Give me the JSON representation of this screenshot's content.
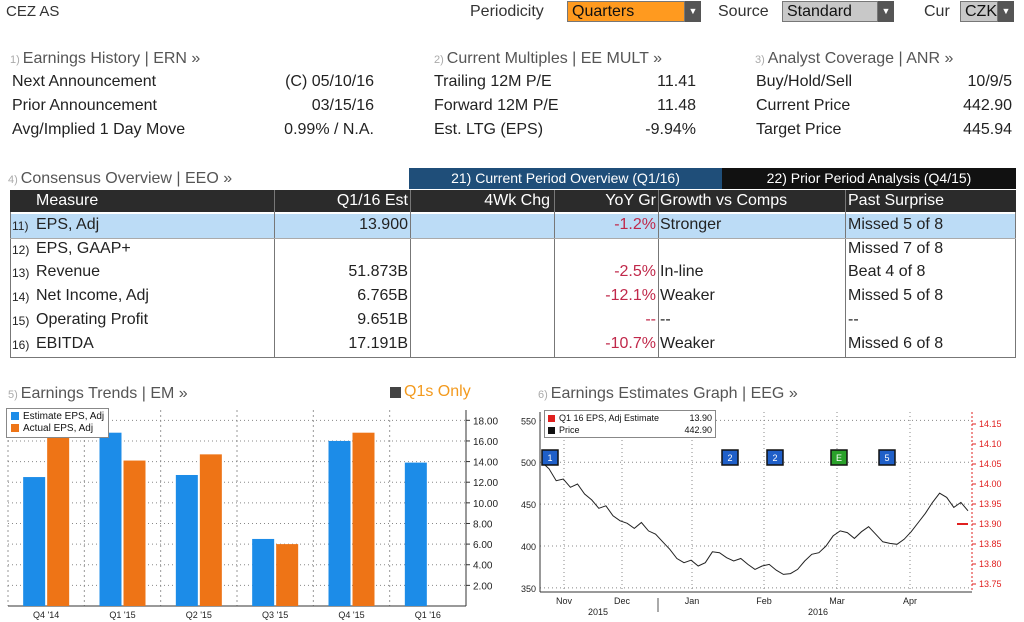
{
  "header": {
    "ticker": "CEZ AS",
    "periodicity_label": "Periodicity",
    "periodicity_value": "Quarters",
    "source_label": "Source",
    "source_value": "Standard",
    "cur_label": "Cur",
    "cur_value": "CZK"
  },
  "earnings_history": {
    "num": "1)",
    "title": "Earnings History | ERN »",
    "rows": [
      {
        "label": "Next Announcement",
        "value": "(C)  05/10/16"
      },
      {
        "label": "Prior Announcement",
        "value": "03/15/16"
      },
      {
        "label": "Avg/Implied 1 Day Move",
        "value": "0.99% / N.A."
      }
    ]
  },
  "current_multiples": {
    "num": "2)",
    "title": "Current Multiples | EE MULT »",
    "rows": [
      {
        "label": "Trailing 12M P/E",
        "value": "11.41"
      },
      {
        "label": "Forward 12M P/E",
        "value": "11.48"
      },
      {
        "label": "Est. LTG (EPS)",
        "value": "-9.94%"
      }
    ]
  },
  "analyst_coverage": {
    "num": "3)",
    "title": "Analyst Coverage | ANR »",
    "rows": [
      {
        "label": "Buy/Hold/Sell",
        "value": "10/9/5"
      },
      {
        "label": "Current Price",
        "value": "442.90"
      },
      {
        "label": "Target Price",
        "value": "445.94"
      }
    ]
  },
  "consensus": {
    "num": "4)",
    "title": "Consensus Overview | EEO »",
    "tab_current": "21) Current Period Overview (Q1/16)",
    "tab_prior": "22) Prior Period Analysis (Q4/15)",
    "columns": [
      "Measure",
      "Q1/16 Est",
      "4Wk Chg",
      "YoY Gr",
      "Growth vs Comps",
      "Past Surprise"
    ],
    "rows": [
      {
        "num": "11)",
        "measure": "EPS, Adj",
        "est": "13.900",
        "chg": "",
        "yoy": "-1.2%",
        "growth": "Stronger",
        "surprise": "Missed 5 of 8"
      },
      {
        "num": "12)",
        "measure": "EPS, GAAP+",
        "est": "",
        "chg": "",
        "yoy": "",
        "growth": "",
        "surprise": "Missed 7 of 8"
      },
      {
        "num": "13)",
        "measure": "Revenue",
        "est": "51.873B",
        "chg": "",
        "yoy": "-2.5%",
        "growth": "In-line",
        "surprise": "Beat 4 of 8"
      },
      {
        "num": "14)",
        "measure": "Net Income, Adj",
        "est": "6.765B",
        "chg": "",
        "yoy": "-12.1%",
        "growth": "Weaker",
        "surprise": "Missed 5 of 8"
      },
      {
        "num": "15)",
        "measure": "Operating Profit",
        "est": "9.651B",
        "chg": "",
        "yoy": "--",
        "growth": "--",
        "surprise": "--"
      },
      {
        "num": "16)",
        "measure": "EBITDA",
        "est": "17.191B",
        "chg": "",
        "yoy": "-10.7%",
        "growth": "Weaker",
        "surprise": "Missed 6 of 8"
      }
    ]
  },
  "earnings_trends": {
    "num": "5)",
    "title": "Earnings Trends | EM »",
    "toggle_label": "Q1s Only",
    "legend": [
      "Estimate EPS, Adj",
      "Actual EPS, Adj"
    ],
    "colors": {
      "estimate": "#1c8ce8",
      "actual": "#ee7416"
    }
  },
  "estimates_graph": {
    "num": "6)",
    "title": "Earnings Estimates Graph | EEG »",
    "legend": [
      {
        "label": "Q1 16 EPS, Adj Estimate",
        "value": "13.90",
        "color": "#e0201f"
      },
      {
        "label": "Price",
        "value": "442.90",
        "color": "#111111"
      }
    ],
    "markers": [
      "1",
      "2",
      "2",
      "E",
      "5"
    ]
  },
  "chart_data": [
    {
      "type": "bar",
      "categories": [
        "Q4 '14",
        "Q1 '15",
        "Q2 '15",
        "Q3 '15",
        "Q4 '15",
        "Q1 '16"
      ],
      "series": [
        {
          "name": "Estimate EPS, Adj",
          "values": [
            12.5,
            16.8,
            12.7,
            6.5,
            16.0,
            13.9
          ]
        },
        {
          "name": "Actual EPS, Adj",
          "values": [
            16.4,
            14.1,
            14.7,
            6.0,
            16.8,
            null
          ]
        }
      ],
      "yticks": [
        "2.00",
        "4.00",
        "6.00",
        "8.00",
        "10.00",
        "12.00",
        "14.00",
        "16.00",
        "18.00"
      ],
      "ylim": [
        0,
        19
      ]
    },
    {
      "type": "line",
      "series": [
        {
          "name": "Price",
          "values": [
            500,
            492,
            478,
            480,
            470,
            474,
            462,
            455,
            445,
            448,
            436,
            430,
            427,
            421,
            428,
            418,
            414,
            405,
            396,
            385,
            380,
            383,
            376,
            380,
            393,
            392,
            386,
            382,
            385,
            378,
            372,
            376,
            378,
            371,
            366,
            367,
            372,
            382,
            390,
            392,
            400,
            412,
            418,
            416,
            409,
            417,
            423,
            414,
            405,
            403,
            402,
            408,
            417,
            428,
            439,
            452,
            463,
            458,
            446,
            452,
            442
          ]
        },
        {
          "name": "Q1 16 EPS, Adj Estimate",
          "values": [
            13.9
          ]
        }
      ],
      "yticks_left": [
        "350",
        "400",
        "450",
        "500",
        "550"
      ],
      "ylim_left": [
        345,
        560
      ],
      "yticks_right": [
        "13.75",
        "13.80",
        "13.85",
        "13.90",
        "13.95",
        "14.00",
        "14.05",
        "14.10",
        "14.15"
      ],
      "ylim_right": [
        13.73,
        14.18
      ],
      "xticks": [
        "Nov",
        "Dec",
        "Jan",
        "Feb",
        "Mar",
        "Apr"
      ],
      "xyears": [
        "2015",
        "2016"
      ]
    }
  ]
}
